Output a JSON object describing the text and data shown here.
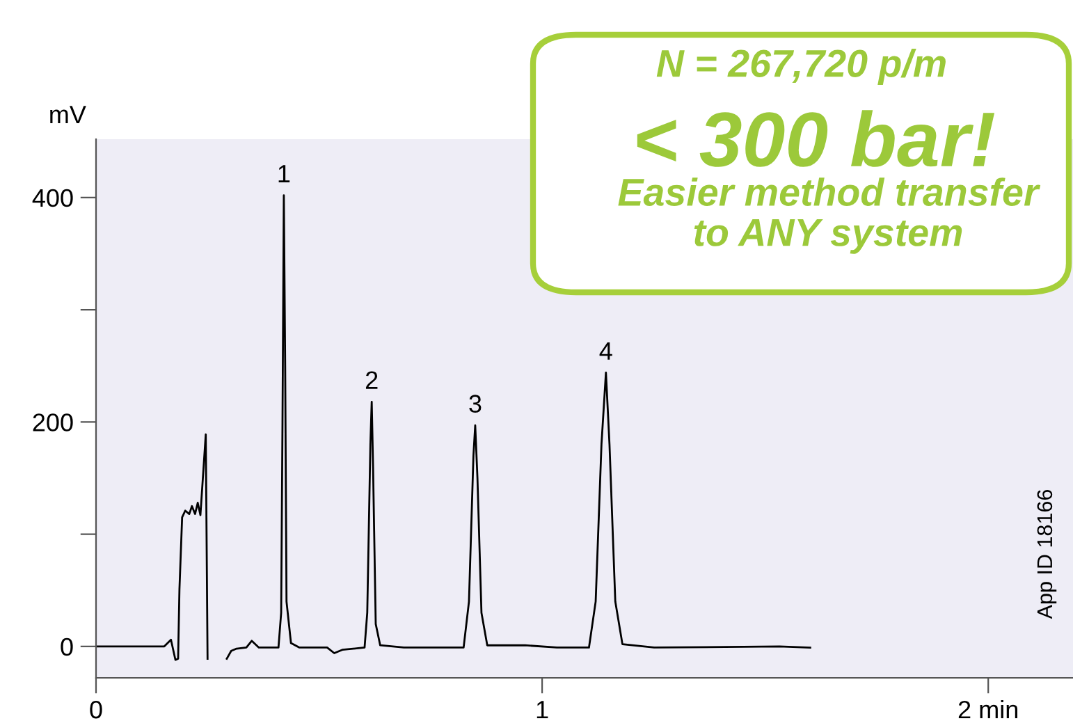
{
  "chart_data": {
    "type": "line",
    "ylabel": "mV",
    "x": [
      0,
      0.153,
      0.168,
      0.178,
      0.184,
      0.187,
      0.193,
      0.2,
      0.209,
      0.215,
      0.222,
      0.228,
      0.234,
      0.246,
      0.25,
      null,
      0.293,
      0.303,
      0.315,
      0.337,
      0.349,
      0.365,
      0.409,
      0.415,
      0.418,
      0.421,
      0.424,
      0.427,
      0.437,
      0.456,
      0.518,
      0.534,
      0.552,
      0.602,
      0.608,
      0.615,
      0.618,
      0.621,
      0.627,
      0.637,
      0.69,
      0.824,
      0.836,
      0.846,
      0.85,
      0.855,
      0.864,
      0.877,
      0.962,
      1.033,
      1.105,
      1.12,
      1.133,
      1.143,
      1.151,
      1.164,
      1.18,
      1.251,
      1.532,
      1.601
    ],
    "series": [
      {
        "color": "#000000",
        "values": [
          0,
          0,
          6,
          -12,
          -11,
          51,
          115,
          121,
          118,
          125,
          118,
          128,
          117,
          189,
          -11,
          null,
          -11,
          -4,
          -2,
          -1,
          5,
          -1,
          -1,
          30,
          200,
          402,
          250,
          40,
          3,
          -1,
          -1,
          -6,
          -3,
          -1,
          30,
          180,
          218,
          160,
          20,
          1,
          -1,
          -1,
          40,
          170,
          197,
          150,
          30,
          1,
          1,
          -1,
          -1,
          40,
          180,
          244,
          180,
          40,
          2,
          -1,
          0,
          -1
        ]
      }
    ],
    "xlim": [
      0,
      2.19
    ],
    "xticks": [
      0,
      1,
      {
        "value": 2,
        "label": "2 min"
      }
    ],
    "ylim": [
      -28,
      452
    ],
    "yticks": [
      0,
      {
        "value": 100,
        "label": null
      },
      200,
      {
        "value": 300,
        "label": null
      },
      400
    ],
    "grid": false,
    "legend": false,
    "marker": "none",
    "line_style": "solid",
    "annotations": [
      "N = 267,720 p/m",
      "< 300 bar!",
      "Easier method transfer\nto ANY system",
      "App ID 18166",
      {
        "text": "1",
        "x": 0.421,
        "y": 402
      },
      {
        "text": "2",
        "x": 0.618,
        "y": 218
      },
      {
        "text": "3",
        "x": 0.85,
        "y": 197
      },
      {
        "text": "4",
        "x": 1.143,
        "y": 244
      }
    ]
  }
}
